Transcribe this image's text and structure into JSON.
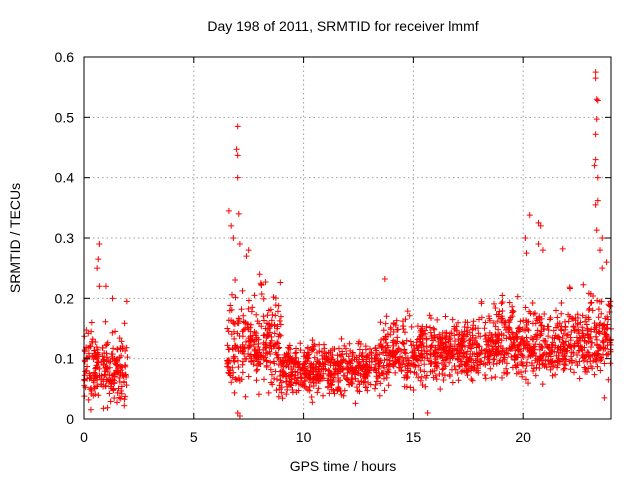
{
  "chart_data": {
    "type": "scatter",
    "title": "Day 198 of 2011, SRMTID for receiver lmmf",
    "xlabel": "GPS time / hours",
    "ylabel": "SRMTID / TECUs",
    "xlim": [
      0,
      24
    ],
    "ylim": [
      0,
      0.6
    ],
    "xticks": [
      0,
      5,
      10,
      15,
      20
    ],
    "yticks": [
      0,
      0.1,
      0.2,
      0.3,
      0.4,
      0.5,
      0.6
    ],
    "xtick_labels": [
      "0",
      "5",
      "10",
      "15",
      "20"
    ],
    "ytick_labels": [
      "0",
      "0.1",
      "0.2",
      "0.3",
      "0.4",
      "0.5",
      "0.6"
    ],
    "grid": true,
    "marker": "+",
    "color": "#ff0000",
    "series": [
      {
        "name": "SRMTID",
        "segments": [
          {
            "x_start": 0.0,
            "x_end": 2.0,
            "low": 0.0,
            "median": 0.08,
            "high": 0.17
          },
          {
            "x_start": 6.5,
            "x_end": 9.0,
            "low": 0.02,
            "median": 0.12,
            "high": 0.25
          },
          {
            "x_start": 9.0,
            "x_end": 13.5,
            "low": 0.02,
            "median": 0.08,
            "high": 0.14
          },
          {
            "x_start": 13.5,
            "x_end": 18.0,
            "low": 0.04,
            "median": 0.11,
            "high": 0.19
          },
          {
            "x_start": 18.0,
            "x_end": 22.0,
            "low": 0.05,
            "median": 0.12,
            "high": 0.22
          },
          {
            "x_start": 22.0,
            "x_end": 24.0,
            "low": 0.05,
            "median": 0.13,
            "high": 0.23
          }
        ],
        "highlights": [
          {
            "x": 0.7,
            "y": 0.29
          },
          {
            "x": 0.65,
            "y": 0.265
          },
          {
            "x": 0.6,
            "y": 0.25
          },
          {
            "x": 0.7,
            "y": 0.22
          },
          {
            "x": 1.0,
            "y": 0.22
          },
          {
            "x": 1.3,
            "y": 0.2
          },
          {
            "x": 1.95,
            "y": 0.195
          },
          {
            "x": 6.6,
            "y": 0.345
          },
          {
            "x": 6.7,
            "y": 0.32
          },
          {
            "x": 6.8,
            "y": 0.3
          },
          {
            "x": 7.0,
            "y": 0.485
          },
          {
            "x": 6.95,
            "y": 0.447
          },
          {
            "x": 7.0,
            "y": 0.437
          },
          {
            "x": 7.0,
            "y": 0.4
          },
          {
            "x": 7.05,
            "y": 0.34
          },
          {
            "x": 7.1,
            "y": 0.29
          },
          {
            "x": 7.5,
            "y": 0.28
          },
          {
            "x": 7.4,
            "y": 0.27
          },
          {
            "x": 8.0,
            "y": 0.24
          },
          {
            "x": 8.05,
            "y": 0.225
          },
          {
            "x": 7.0,
            "y": 0.01
          },
          {
            "x": 7.1,
            "y": 0.005
          },
          {
            "x": 13.7,
            "y": 0.232
          },
          {
            "x": 15.65,
            "y": 0.01
          },
          {
            "x": 20.1,
            "y": 0.3
          },
          {
            "x": 20.3,
            "y": 0.338
          },
          {
            "x": 20.15,
            "y": 0.275
          },
          {
            "x": 20.7,
            "y": 0.325
          },
          {
            "x": 20.8,
            "y": 0.32
          },
          {
            "x": 20.7,
            "y": 0.29
          },
          {
            "x": 20.9,
            "y": 0.28
          },
          {
            "x": 21.8,
            "y": 0.282
          },
          {
            "x": 23.3,
            "y": 0.575
          },
          {
            "x": 23.3,
            "y": 0.565
          },
          {
            "x": 23.35,
            "y": 0.53
          },
          {
            "x": 23.4,
            "y": 0.528
          },
          {
            "x": 23.35,
            "y": 0.497
          },
          {
            "x": 23.3,
            "y": 0.472
          },
          {
            "x": 23.3,
            "y": 0.43
          },
          {
            "x": 23.25,
            "y": 0.42
          },
          {
            "x": 23.4,
            "y": 0.4
          },
          {
            "x": 23.4,
            "y": 0.362
          },
          {
            "x": 23.3,
            "y": 0.355
          },
          {
            "x": 23.35,
            "y": 0.313
          },
          {
            "x": 23.6,
            "y": 0.3
          },
          {
            "x": 23.5,
            "y": 0.28
          },
          {
            "x": 23.8,
            "y": 0.26
          },
          {
            "x": 23.6,
            "y": 0.25
          },
          {
            "x": 23.7,
            "y": 0.035
          }
        ]
      }
    ]
  }
}
